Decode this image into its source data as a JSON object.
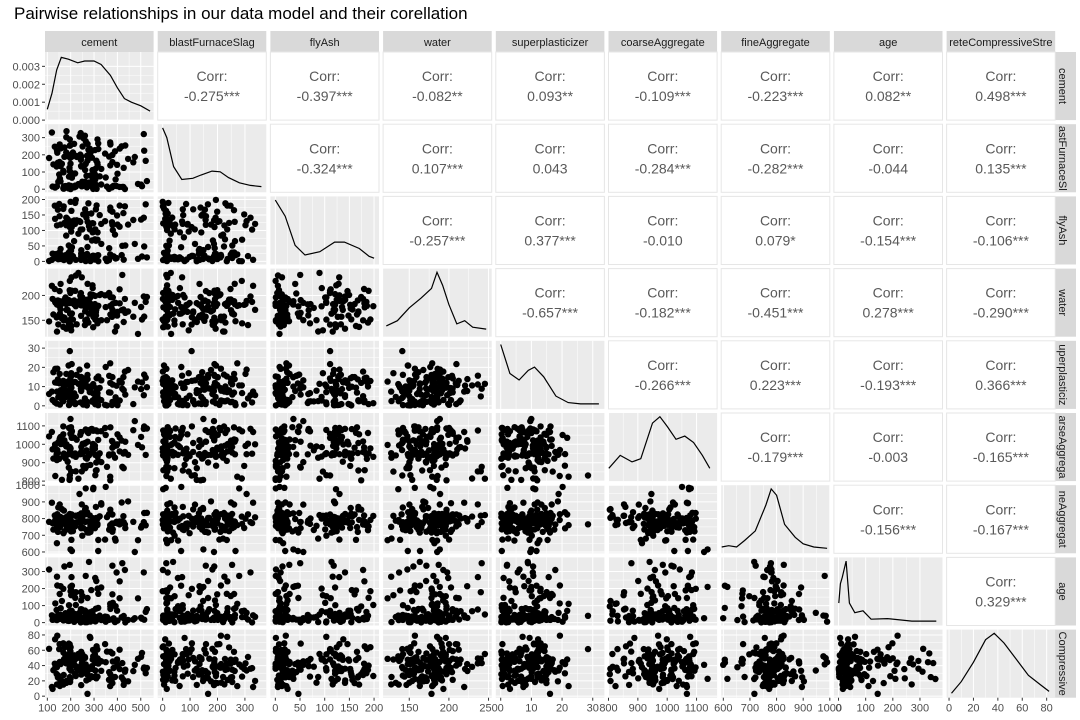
{
  "title": "Pairwise relationships in our data model and their corellation",
  "colors": {
    "panel_bg": "#ebebeb",
    "grid": "#ffffff",
    "strip_bg": "#d9d9d9",
    "text": "#4d4d4d",
    "corr_text": "#595959",
    "point": "#000000"
  },
  "chart_data": {
    "type": "scatter-matrix",
    "variables": [
      "cement",
      "blastFurnaceSlag",
      "flyAsh",
      "water",
      "superplasticizer",
      "coarseAggregate",
      "fineAggregate",
      "age",
      "concreteCompressiveStrength"
    ],
    "top_strip_labels": [
      "cement",
      "blastFurnaceSlag",
      "flyAsh",
      "water",
      "superplasticizer",
      "coarseAggregate",
      "fineAggregate",
      "age",
      "reteCompressiveStre"
    ],
    "right_strip_labels": [
      "cement",
      "astFurnaceSl",
      "flyAsh",
      "water",
      "uperplasticiz",
      "arseAggrega",
      "neAggregat",
      "age",
      "Compressive"
    ],
    "corr_label": "Corr:",
    "correlations": {
      "0-1": "-0.275***",
      "0-2": "-0.397***",
      "0-3": "-0.082**",
      "0-4": "0.093**",
      "0-5": "-0.109***",
      "0-6": "-0.223***",
      "0-7": "0.082**",
      "0-8": "0.498***",
      "1-2": "-0.324***",
      "1-3": "0.107***",
      "1-4": "0.043",
      "1-5": "-0.284***",
      "1-6": "-0.282***",
      "1-7": "-0.044",
      "1-8": "0.135***",
      "2-3": "-0.257***",
      "2-4": "0.377***",
      "2-5": "-0.010",
      "2-6": "0.079*",
      "2-7": "-0.154***",
      "2-8": "-0.106***",
      "3-4": "-0.657***",
      "3-5": "-0.182***",
      "3-6": "-0.451***",
      "3-7": "0.278***",
      "3-8": "-0.290***",
      "4-5": "-0.266***",
      "4-6": "0.223***",
      "4-7": "-0.193***",
      "4-8": "0.366***",
      "5-6": "-0.179***",
      "5-7": "-0.003",
      "5-8": "-0.165***",
      "6-7": "-0.156***",
      "6-8": "-0.167***",
      "7-8": "0.329***"
    },
    "x_axes": [
      {
        "range": [
          90,
          555
        ],
        "ticks": [
          100,
          200,
          300,
          400,
          500
        ],
        "labels": [
          "100",
          "200",
          "300",
          "400",
          "500"
        ]
      },
      {
        "range": [
          -18,
          378
        ],
        "ticks": [
          0,
          100,
          200,
          300
        ],
        "labels": [
          "0",
          "100",
          "200",
          "300"
        ]
      },
      {
        "range": [
          -10,
          210
        ],
        "ticks": [
          0,
          50,
          100,
          150,
          200
        ],
        "labels": [
          "0",
          "50",
          "100",
          "150",
          "200"
        ]
      },
      {
        "range": [
          117,
          254
        ],
        "ticks": [
          150,
          200,
          250
        ],
        "labels": [
          "150",
          "200",
          "250"
        ]
      },
      {
        "range": [
          -1.6,
          33.8
        ],
        "ticks": [
          0,
          10,
          20,
          30
        ],
        "labels": [
          "0",
          "10",
          "20",
          "30"
        ]
      },
      {
        "range": [
          800,
          1170
        ],
        "ticks": [
          800,
          900,
          1000,
          1100
        ],
        "labels": [
          "800",
          "900",
          "1000",
          "1100"
        ]
      },
      {
        "range": [
          592,
          1000
        ],
        "ticks": [
          600,
          700,
          800,
          900,
          1000
        ],
        "labels": [
          "600",
          "700",
          "800",
          "900",
          "1000"
        ]
      },
      {
        "range": [
          -17,
          383
        ],
        "ticks": [
          0,
          100,
          200,
          300
        ],
        "labels": [
          "0",
          "100",
          "200",
          "300"
        ]
      },
      {
        "range": [
          -2,
          87
        ],
        "ticks": [
          0,
          20,
          40,
          60,
          80
        ],
        "labels": [
          "0",
          "20",
          "40",
          "60",
          "80"
        ]
      }
    ],
    "y_axes": [
      {
        "range": [
          0,
          0.0038
        ],
        "ticks": [
          0,
          0.001,
          0.002,
          0.003
        ],
        "labels": [
          "0.000",
          "0.001",
          "0.002",
          "0.003"
        ]
      },
      {
        "range": [
          -18,
          378
        ],
        "ticks": [
          0,
          100,
          200,
          300
        ],
        "labels": [
          "0",
          "100",
          "200",
          "300"
        ]
      },
      {
        "range": [
          -10,
          210
        ],
        "ticks": [
          0,
          50,
          100,
          150,
          200
        ],
        "labels": [
          "0",
          "50",
          "100",
          "150",
          "200"
        ]
      },
      {
        "range": [
          117,
          254
        ],
        "ticks": [
          150,
          200
        ],
        "labels": [
          "150",
          "200"
        ]
      },
      {
        "range": [
          -1.6,
          33.8
        ],
        "ticks": [
          0,
          10,
          20,
          30
        ],
        "labels": [
          "0",
          "10",
          "20",
          "30"
        ]
      },
      {
        "range": [
          800,
          1170
        ],
        "ticks": [
          800,
          900,
          1000,
          1100
        ],
        "labels": [
          "800",
          "900",
          "1000",
          "1100"
        ]
      },
      {
        "range": [
          592,
          1000
        ],
        "ticks": [
          600,
          700,
          800,
          900,
          1000
        ],
        "labels": [
          "600",
          "700",
          "800",
          "900",
          "1000"
        ]
      },
      {
        "range": [
          -17,
          383
        ],
        "ticks": [
          0,
          100,
          200,
          300
        ],
        "labels": [
          "0",
          "100",
          "200",
          "300"
        ]
      },
      {
        "range": [
          -2,
          87
        ],
        "ticks": [
          0,
          20,
          40,
          60,
          80
        ],
        "labels": [
          "0",
          "20",
          "40",
          "60",
          "80"
        ]
      }
    ],
    "density_profiles": [
      [
        [
          100,
          0.0006
        ],
        [
          120,
          0.0015
        ],
        [
          140,
          0.0028
        ],
        [
          160,
          0.0035
        ],
        [
          190,
          0.0034
        ],
        [
          230,
          0.0032
        ],
        [
          260,
          0.0033
        ],
        [
          300,
          0.0033
        ],
        [
          330,
          0.0031
        ],
        [
          370,
          0.0025
        ],
        [
          400,
          0.0018
        ],
        [
          430,
          0.0012
        ],
        [
          460,
          0.001
        ],
        [
          500,
          0.0008
        ],
        [
          540,
          0.0005
        ]
      ],
      [
        [
          0,
          0.95
        ],
        [
          15,
          0.8
        ],
        [
          40,
          0.35
        ],
        [
          70,
          0.15
        ],
        [
          110,
          0.17
        ],
        [
          140,
          0.22
        ],
        [
          180,
          0.28
        ],
        [
          210,
          0.27
        ],
        [
          240,
          0.18
        ],
        [
          280,
          0.1
        ],
        [
          320,
          0.06
        ],
        [
          360,
          0.04
        ]
      ],
      [
        [
          0,
          0.95
        ],
        [
          20,
          0.7
        ],
        [
          40,
          0.25
        ],
        [
          60,
          0.1
        ],
        [
          90,
          0.15
        ],
        [
          120,
          0.3
        ],
        [
          140,
          0.3
        ],
        [
          170,
          0.2
        ],
        [
          190,
          0.08
        ],
        [
          200,
          0.05
        ]
      ],
      [
        [
          121,
          0.12
        ],
        [
          135,
          0.2
        ],
        [
          150,
          0.4
        ],
        [
          165,
          0.55
        ],
        [
          178,
          0.7
        ],
        [
          185,
          0.95
        ],
        [
          192,
          0.75
        ],
        [
          200,
          0.45
        ],
        [
          210,
          0.15
        ],
        [
          220,
          0.2
        ],
        [
          230,
          0.1
        ],
        [
          247,
          0.07
        ]
      ],
      [
        [
          0,
          0.95
        ],
        [
          3,
          0.5
        ],
        [
          6,
          0.4
        ],
        [
          9,
          0.55
        ],
        [
          11,
          0.6
        ],
        [
          14,
          0.45
        ],
        [
          18,
          0.15
        ],
        [
          22,
          0.05
        ],
        [
          26,
          0.03
        ],
        [
          32,
          0.03
        ]
      ],
      [
        [
          801,
          0.15
        ],
        [
          840,
          0.35
        ],
        [
          880,
          0.25
        ],
        [
          910,
          0.3
        ],
        [
          950,
          0.85
        ],
        [
          975,
          0.95
        ],
        [
          1000,
          0.8
        ],
        [
          1030,
          0.6
        ],
        [
          1060,
          0.65
        ],
        [
          1090,
          0.55
        ],
        [
          1120,
          0.35
        ],
        [
          1145,
          0.15
        ]
      ],
      [
        [
          594,
          0.05
        ],
        [
          620,
          0.07
        ],
        [
          650,
          0.05
        ],
        [
          680,
          0.15
        ],
        [
          720,
          0.3
        ],
        [
          760,
          0.7
        ],
        [
          780,
          0.95
        ],
        [
          800,
          0.85
        ],
        [
          830,
          0.4
        ],
        [
          870,
          0.2
        ],
        [
          900,
          0.1
        ],
        [
          940,
          0.05
        ],
        [
          990,
          0.03
        ]
      ],
      [
        [
          1,
          0.3
        ],
        [
          7,
          0.6
        ],
        [
          14,
          0.7
        ],
        [
          28,
          0.95
        ],
        [
          40,
          0.3
        ],
        [
          60,
          0.15
        ],
        [
          90,
          0.18
        ],
        [
          120,
          0.05
        ],
        [
          180,
          0.06
        ],
        [
          270,
          0.02
        ],
        [
          360,
          0.02
        ]
      ],
      [
        [
          2,
          0.02
        ],
        [
          10,
          0.2
        ],
        [
          20,
          0.5
        ],
        [
          30,
          0.85
        ],
        [
          37,
          0.95
        ],
        [
          45,
          0.8
        ],
        [
          55,
          0.55
        ],
        [
          65,
          0.3
        ],
        [
          75,
          0.15
        ],
        [
          82,
          0.05
        ]
      ]
    ]
  }
}
